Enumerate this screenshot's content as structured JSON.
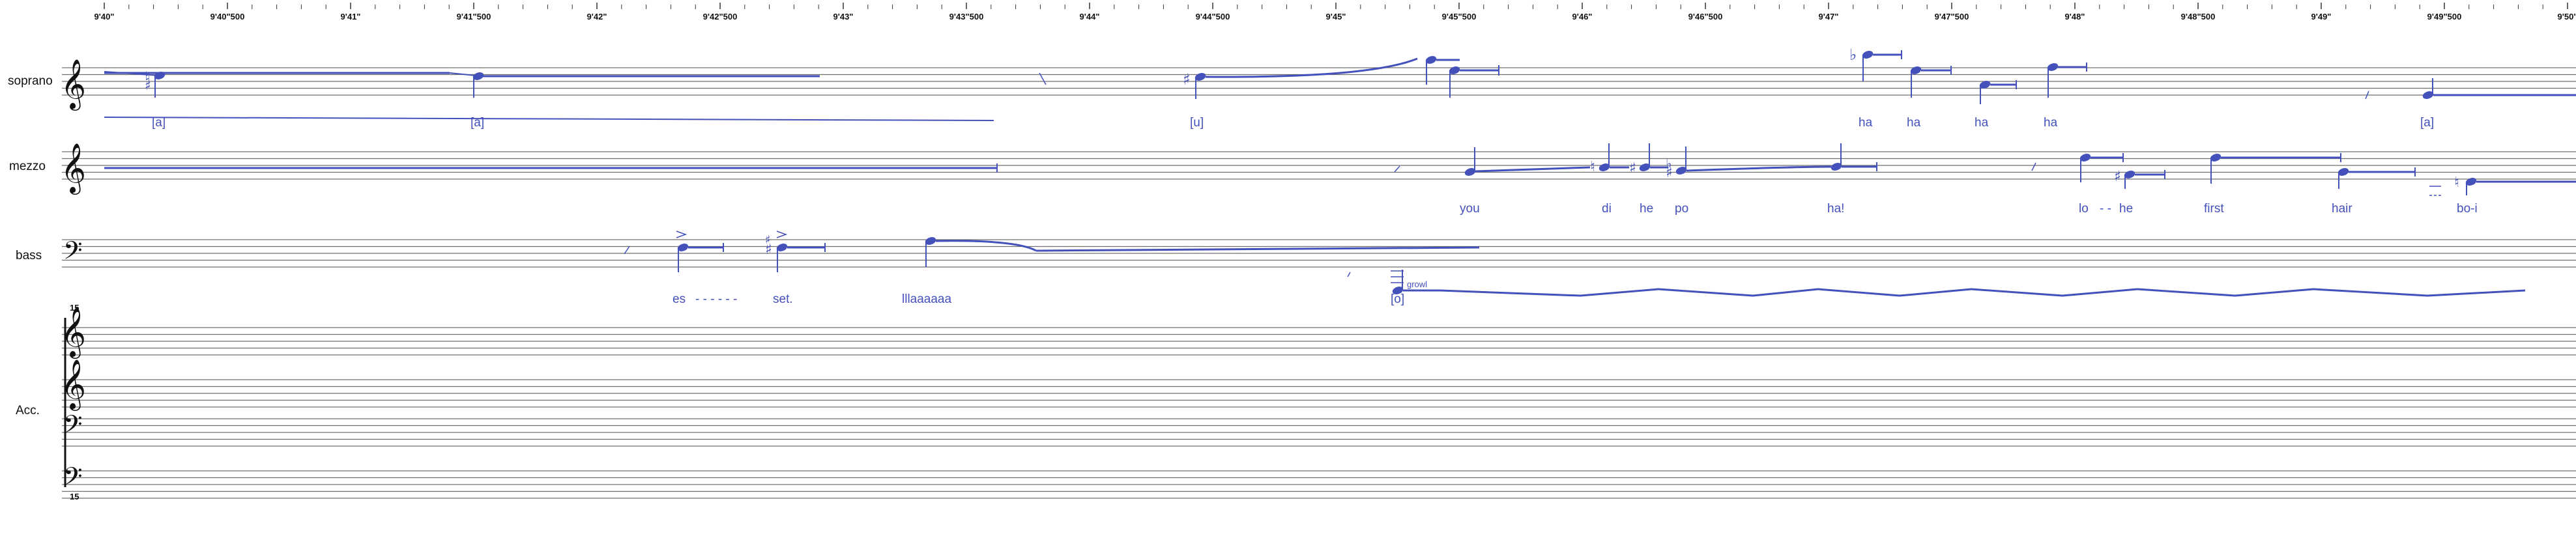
{
  "colors": {
    "ink": "#111111",
    "staff": "#6f6f6f",
    "notes": "#4451bb",
    "tick": "#333333"
  },
  "timeline": {
    "labels": [
      "9'40\"",
      "9'40\"500",
      "9'41\"",
      "9'41\"500",
      "9'42\"",
      "9'42\"500",
      "9'43\"",
      "9'43\"500",
      "9'44\"",
      "9'44\"500",
      "9'45\"",
      "9'45\"500",
      "9'46\"",
      "9'46\"500",
      "9'47\"",
      "9'47\"500",
      "9'48\"",
      "9'48\"500",
      "9'49\"",
      "9'49\"500",
      "9'50\""
    ]
  },
  "staves": [
    {
      "name": "soprano",
      "clef": "treble-clef-icon",
      "lyrics": [
        "[a]",
        "[a]",
        "[u]",
        "ha",
        "ha",
        "ha",
        "ha",
        "[a]"
      ]
    },
    {
      "name": "mezzo",
      "clef": "treble-clef-icon",
      "lyrics": [
        "you",
        "di",
        "he",
        "po",
        "ha!",
        "lo",
        "- -",
        "he",
        "first",
        "hair",
        "bo-i"
      ]
    },
    {
      "name": "bass",
      "clef": "bass-clef-icon",
      "lyrics": [
        "es",
        "- - - - - -",
        "set.",
        "lllaaaaaa",
        "[o]"
      ],
      "annotations": [
        "growl"
      ]
    },
    {
      "name": "Acc.",
      "clefs": [
        "treble-clef-icon",
        "treble-clef-icon",
        "bass-clef-icon",
        "bass-clef-icon"
      ],
      "octave_marks": [
        "15",
        "15"
      ]
    }
  ]
}
